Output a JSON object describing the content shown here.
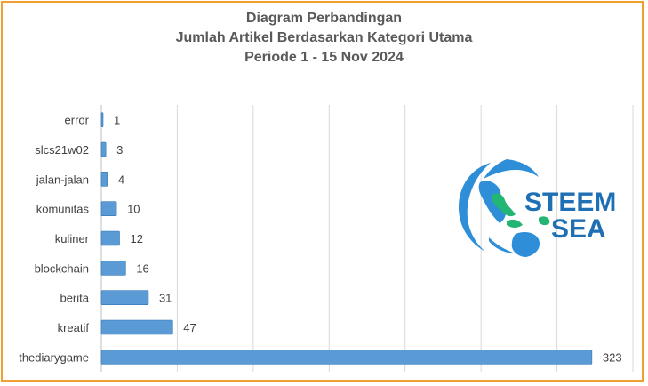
{
  "title_lines": [
    "Diagram Perbandingan",
    "Jumlah Artikel Berdasarkan Kategori Utama",
    "Periode 1 - 15 Nov 2024"
  ],
  "logo": {
    "line1": "STEEM",
    "line2": "SEA"
  },
  "colors": {
    "bar": "#5b9bd5",
    "bar_dark": "#2e75b6",
    "frame": "#f0a030",
    "grid": "#d9d9d9",
    "text": "#404040",
    "logo_text": "#1f6fb5",
    "logo_globe": "#2e8fd8",
    "logo_land": "#22b573"
  },
  "chart_data": {
    "type": "bar",
    "orientation": "horizontal",
    "categories": [
      "error",
      "slcs21w02",
      "jalan-jalan",
      "komunitas",
      "kuliner",
      "blockchain",
      "berita",
      "kreatif",
      "thediarygame"
    ],
    "values": [
      1,
      3,
      4,
      10,
      12,
      16,
      31,
      47,
      323
    ],
    "title": "Diagram Perbandingan Jumlah Artikel Berdasarkan Kategori Utama Periode 1 - 15 Nov 2024",
    "xlim": [
      0,
      350
    ],
    "grid": true,
    "data_labels": true
  }
}
